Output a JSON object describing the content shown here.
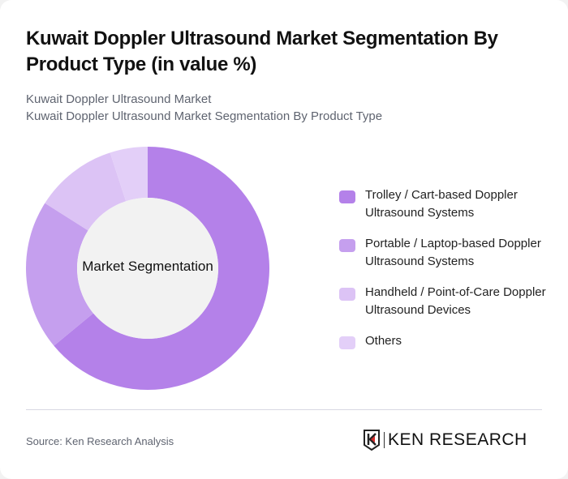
{
  "header": {
    "title": "Kuwait Doppler Ultrasound Market Segmentation By Product Type (in value %)",
    "subtitle_1": "Kuwait Doppler Ultrasound Market",
    "subtitle_2": "Kuwait Doppler Ultrasound Market Segmentation By Product Type"
  },
  "chart_data": {
    "type": "pie",
    "variant": "donut",
    "title": "Kuwait Doppler Ultrasound Market Segmentation By Product Type (in value %)",
    "center_label": "Market Segmentation",
    "categories": [
      "Trolley / Cart-based Doppler Ultrasound Systems",
      "Portable / Laptop-based Doppler Ultrasound Systems",
      "Handheld / Point-of-Care Doppler Ultrasound Devices",
      "Others"
    ],
    "values": [
      64,
      20,
      11,
      5
    ],
    "colors": [
      "#b481e9",
      "#c59fee",
      "#dcc3f5",
      "#e3cff8"
    ],
    "legend_position": "right",
    "start_angle": "top, clockwise"
  },
  "legend": {
    "items": [
      {
        "label": "Trolley / Cart-based Doppler Ultrasound Systems",
        "color": "#b481e9"
      },
      {
        "label": "Portable / Laptop-based Doppler Ultrasound Systems",
        "color": "#c59fee"
      },
      {
        "label": "Handheld / Point-of-Care Doppler Ultrasound Devices",
        "color": "#dcc3f5"
      },
      {
        "label": "Others",
        "color": "#e3cff8"
      }
    ]
  },
  "footer": {
    "source": "Source: Ken Research Analysis",
    "logo_text": "KEN RESEARCH"
  }
}
